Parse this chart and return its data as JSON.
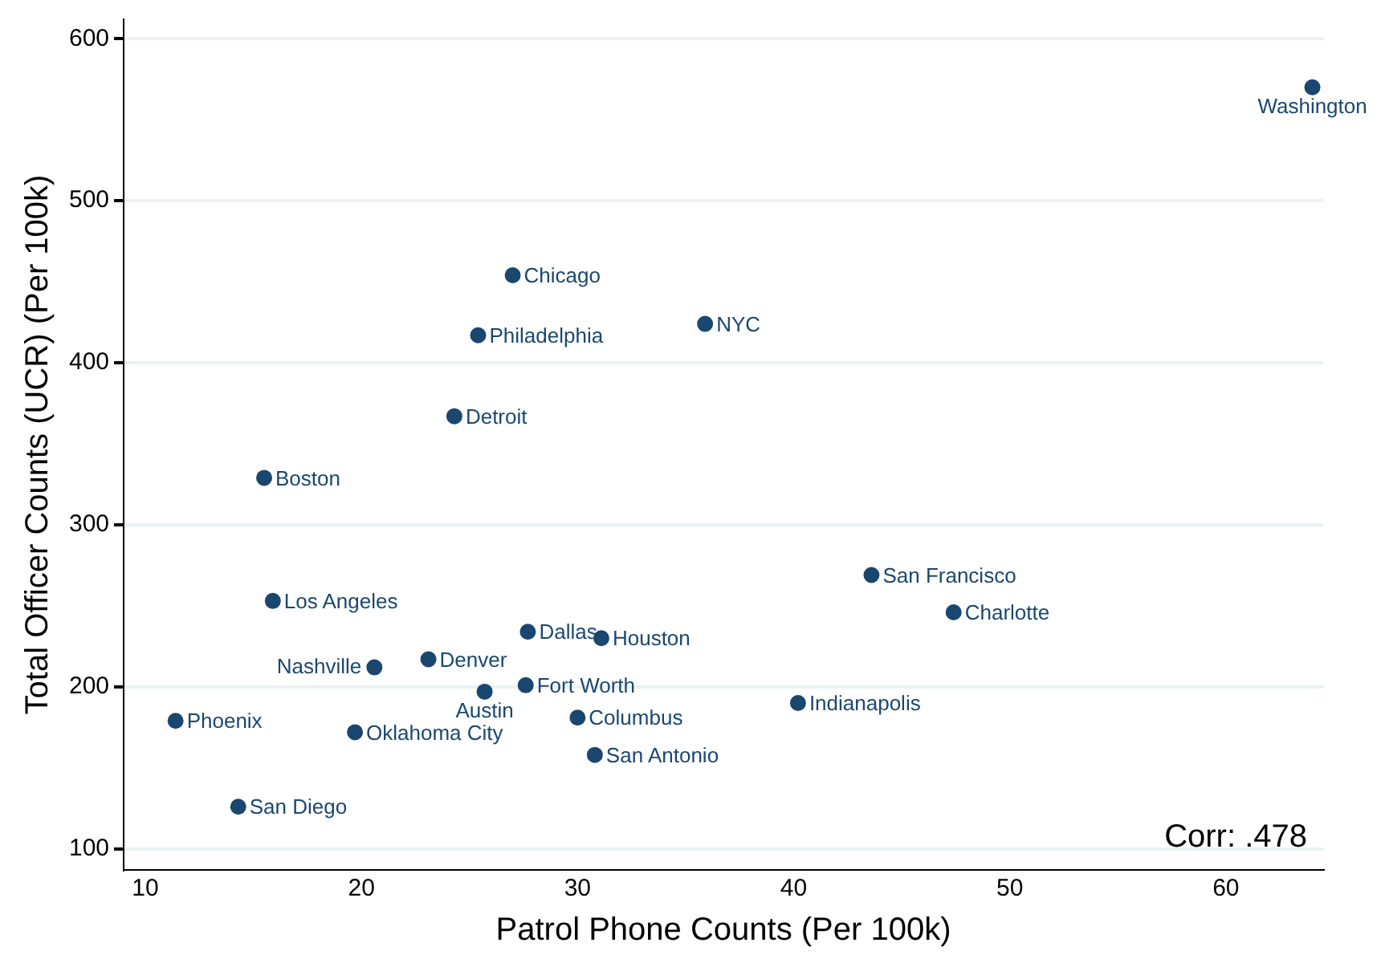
{
  "chart_data": {
    "type": "scatter",
    "xlabel": "Patrol Phone Counts (Per 100k)",
    "ylabel": "Total Officer Counts (UCR) (Per 100k)",
    "x": [
      64.0,
      27.0,
      25.4,
      35.9,
      24.3,
      15.5,
      43.6,
      47.4,
      15.9,
      27.7,
      31.1,
      20.6,
      23.1,
      25.7,
      27.6,
      40.2,
      11.4,
      19.7,
      30.0,
      30.8,
      14.3
    ],
    "series": [
      {
        "color": "#1a476f",
        "values": [
          570,
          454,
          417,
          424,
          367,
          329,
          269,
          246,
          253,
          234,
          230,
          212,
          217,
          197,
          201,
          190,
          179,
          172,
          181,
          158,
          126
        ]
      }
    ],
    "value_labels": [
      "Washington",
      "Chicago",
      "Philadelphia",
      "NYC",
      "Detroit",
      "Boston",
      "San Francisco",
      "Charlotte",
      "Los Angeles",
      "Dallas",
      "Houston",
      "Nashville",
      "Denver",
      "Austin",
      "Fort Worth",
      "Indianapolis",
      "Phoenix",
      "Oklahoma City",
      "Columbus",
      "San Antonio",
      "San Diego"
    ],
    "xlim": [
      9,
      64.5
    ],
    "xticks": [
      10,
      20,
      30,
      40,
      50,
      60
    ],
    "ylim": [
      87,
      612
    ],
    "yticks": [
      100,
      200,
      300,
      400,
      500,
      600
    ],
    "grid": "y",
    "legend": false,
    "marker": "circle",
    "annotations": [
      "Corr: .478"
    ]
  }
}
